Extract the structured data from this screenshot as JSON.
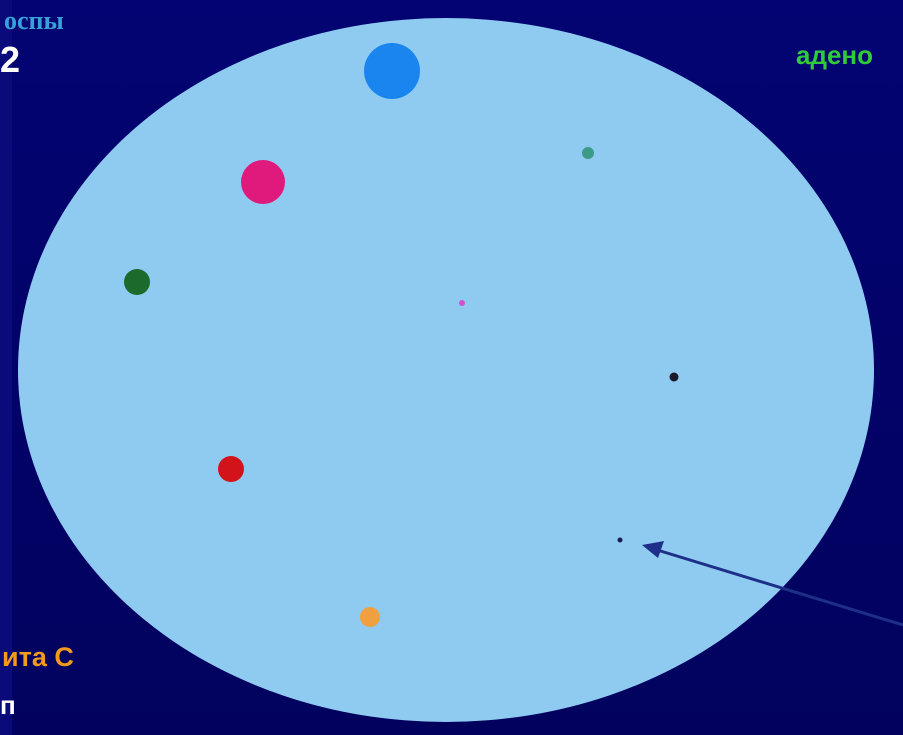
{
  "texts": {
    "title": "оспы",
    "number": "2",
    "label_green": "адено",
    "label_orange": "ита С",
    "label_bottom": "п"
  },
  "colors": {
    "background": "#03036b",
    "disc": "#8fcbf1",
    "arrow": "#1e2f8a"
  },
  "icons": {
    "disc": "circle",
    "arrow": "arrow-icon"
  },
  "dots": [
    {
      "name": "blue-dot",
      "color": "#1a85ee"
    },
    {
      "name": "magenta-dot",
      "color": "#e0197c"
    },
    {
      "name": "teal-dot",
      "color": "#3c9b86"
    },
    {
      "name": "darkgreen-dot",
      "color": "#1d6b2c"
    },
    {
      "name": "pink-dot",
      "color": "#d24fd0"
    },
    {
      "name": "black-dot",
      "color": "#1a1a2a"
    },
    {
      "name": "red-dot",
      "color": "#d3131a"
    },
    {
      "name": "tiny-navy-dot",
      "color": "#1a1a55"
    },
    {
      "name": "orange-dot",
      "color": "#f0a040"
    }
  ]
}
